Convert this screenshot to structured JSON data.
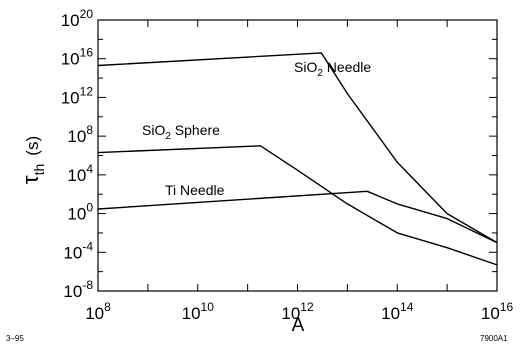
{
  "chart_data": {
    "type": "line",
    "x_scale": "log",
    "y_scale": "log",
    "xlabel": "A",
    "ylabel": "τth (s)",
    "ylabel_main": "τ",
    "ylabel_sub": "th",
    "ylabel_unit": "(s)",
    "xlim": [
      100000000.0,
      1e+16
    ],
    "ylim": [
      1e-08,
      1e+20
    ],
    "x_ticks": [
      {
        "base": "10",
        "exp": "8"
      },
      {
        "base": "10",
        "exp": "10"
      },
      {
        "base": "10",
        "exp": "12"
      },
      {
        "base": "10",
        "exp": "14"
      },
      {
        "base": "10",
        "exp": "16"
      }
    ],
    "y_ticks": [
      {
        "base": "10",
        "exp": "-8"
      },
      {
        "base": "10",
        "exp": "-4"
      },
      {
        "base": "10",
        "exp": "0"
      },
      {
        "base": "10",
        "exp": "4"
      },
      {
        "base": "10",
        "exp": "8"
      },
      {
        "base": "10",
        "exp": "12"
      },
      {
        "base": "10",
        "exp": "16"
      },
      {
        "base": "10",
        "exp": "20"
      }
    ],
    "grid": false,
    "series": [
      {
        "name": "SiO2 Needle",
        "label_main": "SiO",
        "label_sub": "2",
        "label_rest": " Needle",
        "x": [
          100000000.0,
          3000000000000.0,
          10000000000000.0,
          100000000000000.0,
          1000000000000000.0,
          1e+16
        ],
        "y": [
          2000000000000000.0,
          4e+16,
          2500000000000.0,
          200000.0,
          1.0,
          0.001
        ]
      },
      {
        "name": "SiO2 Sphere",
        "label_main": "SiO",
        "label_sub": "2",
        "label_rest": " Sphere",
        "x": [
          100000000.0,
          180000000000.0,
          1000000000000.0,
          10000000000000.0,
          100000000000000.0,
          1000000000000000.0,
          1e+16
        ],
        "y": [
          2000000.0,
          10000000.0,
          30000.0,
          10.0,
          0.01,
          0.0003,
          5e-06
        ]
      },
      {
        "name": "Ti Needle",
        "label_main": "Ti Needle",
        "label_sub": "",
        "label_rest": "",
        "x": [
          100000000.0,
          25000000000000.0,
          100000000000000.0,
          1000000000000000.0,
          1e+16
        ],
        "y": [
          3.0,
          200.0,
          10.0,
          0.3,
          0.001
        ]
      }
    ],
    "annotations": {
      "bottom_left": "3–95",
      "bottom_right": "7900A1"
    }
  }
}
